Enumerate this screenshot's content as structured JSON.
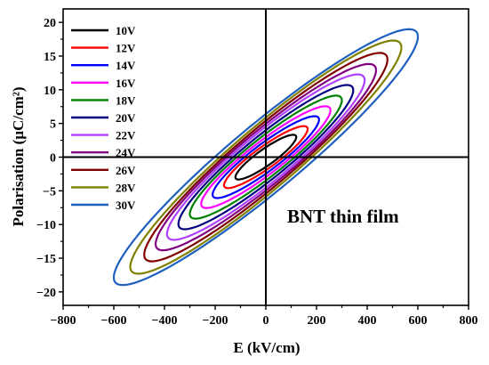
{
  "chart_data": {
    "type": "line",
    "title": "",
    "xlabel": "E (kV/cm)",
    "ylabel": "Polarisation (µC/cm²)",
    "xlim": [
      -800,
      800
    ],
    "ylim": [
      -22,
      22
    ],
    "xticks": [
      -800,
      -600,
      -400,
      -200,
      0,
      200,
      400,
      600,
      800
    ],
    "xtick_labels": [
      "−800",
      "−600",
      "−400",
      "−200",
      "0",
      "200",
      "400",
      "600",
      "800"
    ],
    "yticks": [
      -20,
      -15,
      -10,
      -5,
      0,
      5,
      10,
      15,
      20
    ],
    "ytick_labels": [
      "−20",
      "−15",
      "−10",
      "−5",
      "0",
      "5",
      "10",
      "15",
      "20"
    ],
    "grid": false,
    "legend_position": "top-left",
    "annotation": "BNT thin film",
    "series": [
      {
        "name": "10V",
        "color": "#000000",
        "emax": 120,
        "pmax": 3.0,
        "pr": 1.3
      },
      {
        "name": "12V",
        "color": "#ff0000",
        "emax": 165,
        "pmax": 4.2,
        "pr": 1.7
      },
      {
        "name": "14V",
        "color": "#0000ff",
        "emax": 210,
        "pmax": 5.6,
        "pr": 2.1
      },
      {
        "name": "16V",
        "color": "#ff00ff",
        "emax": 255,
        "pmax": 7.0,
        "pr": 2.5
      },
      {
        "name": "18V",
        "color": "#008000",
        "emax": 300,
        "pmax": 8.5,
        "pr": 2.9
      },
      {
        "name": "20V",
        "color": "#000080",
        "emax": 345,
        "pmax": 10.0,
        "pr": 3.3
      },
      {
        "name": "22V",
        "color": "#b040ff",
        "emax": 390,
        "pmax": 11.5,
        "pr": 3.7
      },
      {
        "name": "24V",
        "color": "#800080",
        "emax": 435,
        "pmax": 13.0,
        "pr": 4.0
      },
      {
        "name": "26V",
        "color": "#800000",
        "emax": 480,
        "pmax": 14.6,
        "pr": 4.3
      },
      {
        "name": "28V",
        "color": "#808000",
        "emax": 535,
        "pmax": 16.4,
        "pr": 4.6
      },
      {
        "name": "30V",
        "color": "#1f5fbf",
        "emax": 600,
        "pmax": 18.0,
        "pr": 5.0
      }
    ]
  }
}
